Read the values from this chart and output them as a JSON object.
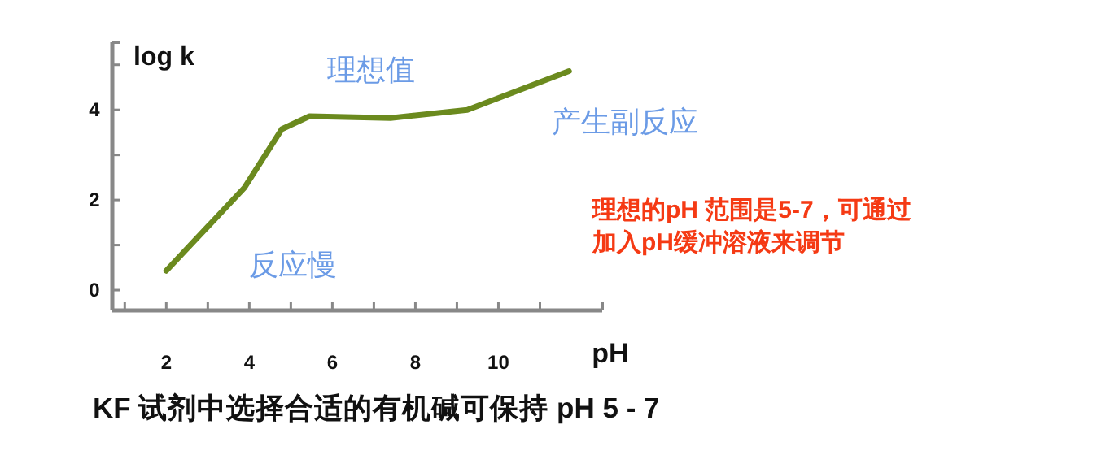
{
  "chart_data": {
    "type": "line",
    "title": "KF 试剂中选择合适的有机碱可保持 pH 5 - 7",
    "xlabel": "pH",
    "ylabel": "log k",
    "x": [
      2,
      3.88,
      4.78,
      5.45,
      7.4,
      9.25,
      11.7
    ],
    "series": [
      {
        "color": "#6b8a1e",
        "values": [
          0.43,
          2.27,
          3.57,
          3.86,
          3.82,
          4.0,
          4.86
        ]
      }
    ],
    "xlim": [
      0.7,
      12.5
    ],
    "xticks": [
      {
        "value": 1,
        "label": null
      },
      2,
      {
        "value": 3,
        "label": null
      },
      4,
      {
        "value": 5,
        "label": null
      },
      6,
      {
        "value": 7,
        "label": null
      },
      8,
      {
        "value": 9,
        "label": null
      },
      10,
      {
        "value": 11,
        "label": null
      }
    ],
    "ylim": [
      -0.45,
      5.5
    ],
    "yticks": [
      0,
      {
        "value": 1,
        "label": null
      },
      2,
      {
        "value": 3,
        "label": null
      },
      4,
      {
        "value": 5,
        "label": null
      }
    ],
    "annotations": [
      "理想值",
      "反应慢",
      "产生副反应",
      "理想的pH 范围是5-7，可通过加入pH缓冲溶液来调节"
    ],
    "grid": false,
    "marker": "none",
    "line_style": "solid"
  }
}
